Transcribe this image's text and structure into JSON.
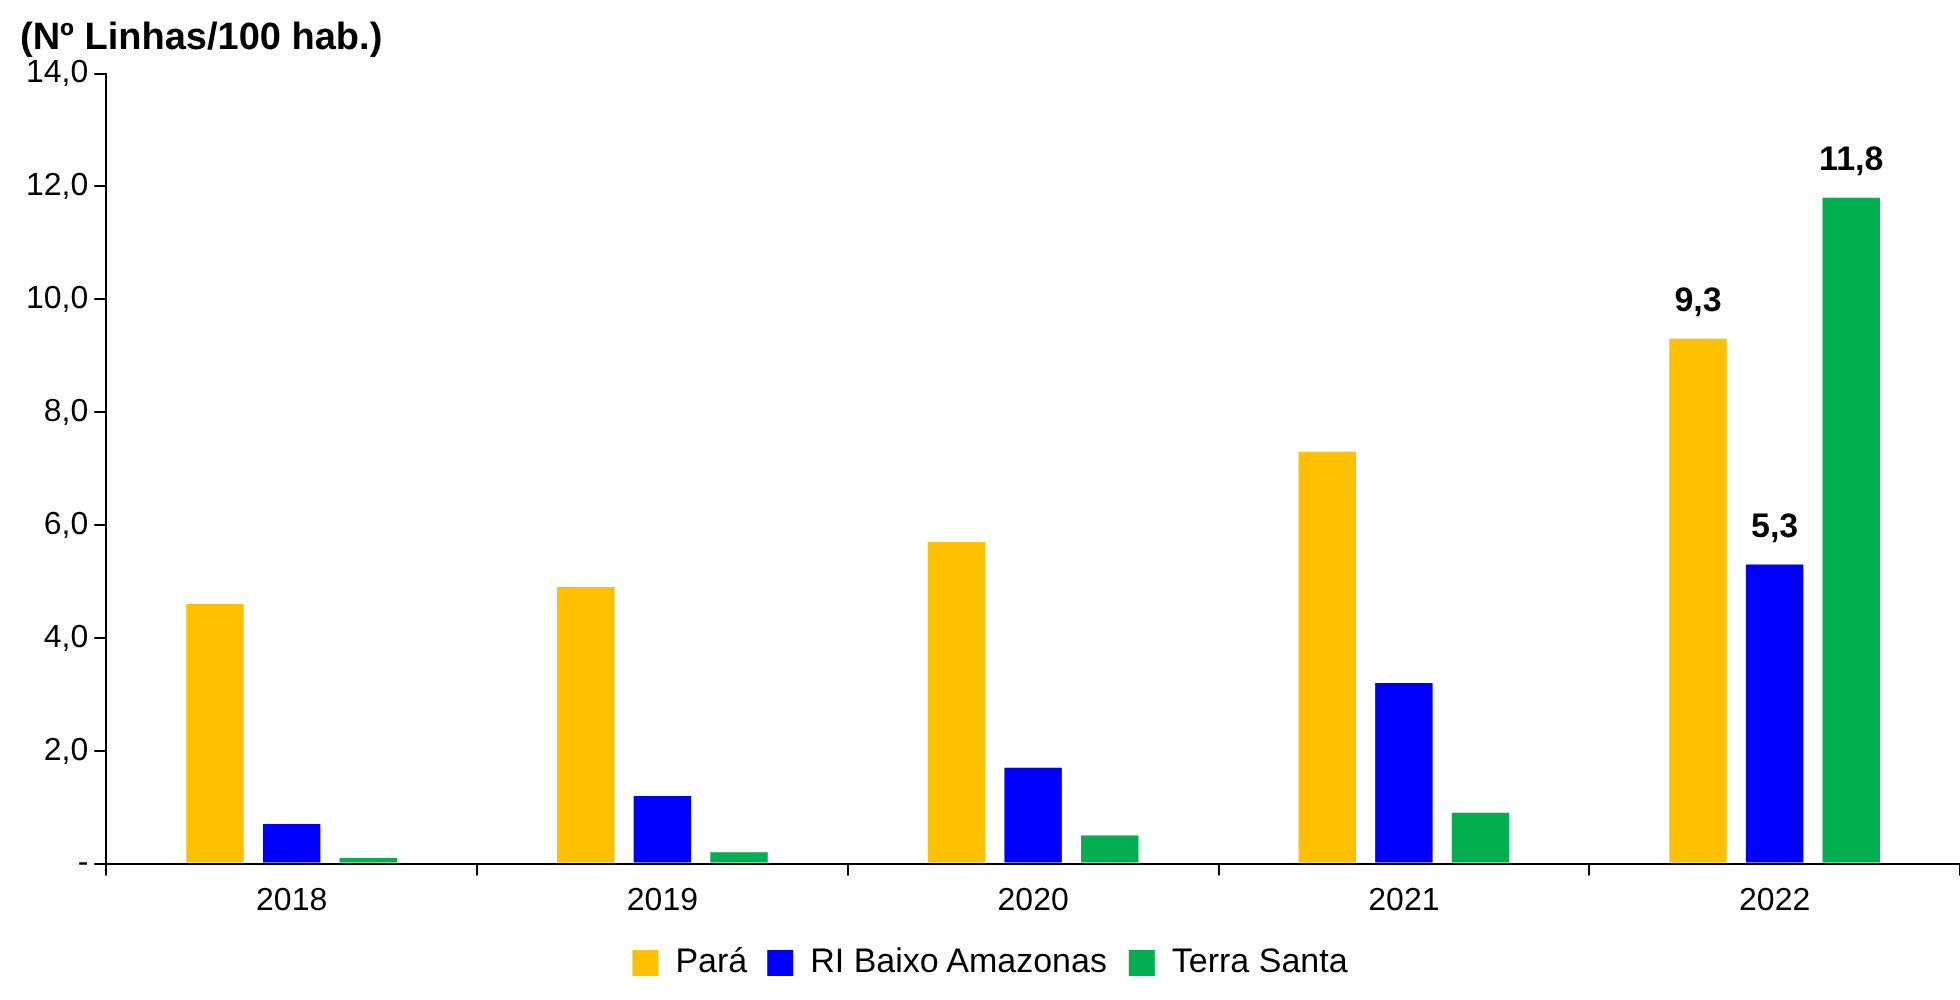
{
  "chart_data": {
    "type": "bar",
    "title": "(Nº Linhas/100 hab.)",
    "categories": [
      "2018",
      "2019",
      "2020",
      "2021",
      "2022"
    ],
    "series": [
      {
        "name": "Pará",
        "color": "#ffc000",
        "values": [
          4.6,
          4.9,
          5.7,
          7.3,
          9.3
        ],
        "value_labels": [
          null,
          null,
          null,
          null,
          "9,3"
        ]
      },
      {
        "name": "RI Baixo Amazonas",
        "color": "#0000ff",
        "values": [
          0.7,
          1.2,
          1.7,
          3.2,
          5.3
        ],
        "value_labels": [
          null,
          null,
          null,
          null,
          "5,3"
        ]
      },
      {
        "name": "Terra Santa",
        "color": "#00b050",
        "values": [
          0.1,
          0.2,
          0.5,
          0.9,
          11.8
        ],
        "value_labels": [
          null,
          null,
          null,
          null,
          "11,8"
        ]
      }
    ],
    "ylim": [
      0,
      14
    ],
    "yticks": [
      {
        "value": 0,
        "label": "-"
      },
      {
        "value": 2,
        "label": "2,0"
      },
      {
        "value": 4,
        "label": "4,0"
      },
      {
        "value": 6,
        "label": "6,0"
      },
      {
        "value": 8,
        "label": "8,0"
      },
      {
        "value": 10,
        "label": "10,0"
      },
      {
        "value": 12,
        "label": "12,0"
      },
      {
        "value": 14,
        "label": "14,0"
      }
    ],
    "grid": false,
    "legend": "bottom"
  }
}
